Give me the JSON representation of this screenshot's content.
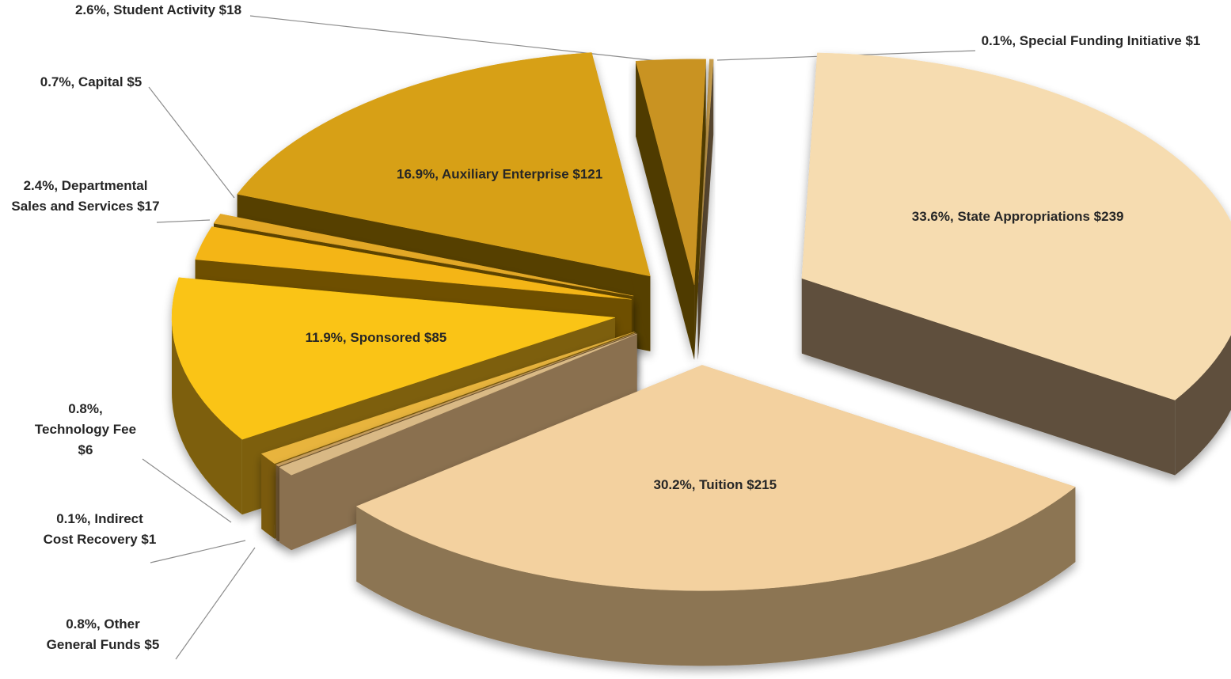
{
  "chart_data": {
    "type": "pie",
    "variant": "3d-exploded",
    "legend": "none",
    "slices": [
      {
        "name": "State Appropriations",
        "percent": "33.6%",
        "value": 239,
        "text": "33.6%, State Appropriations $239",
        "color": "#f6dcb0",
        "side": "#5e4f3c"
      },
      {
        "name": "Tuition",
        "percent": "30.2%",
        "value": 215,
        "text": "30.2%, Tuition $215",
        "color": "#f3d19f",
        "side": "#8c7452"
      },
      {
        "name": "Other General Funds",
        "percent": "0.8%",
        "value": 5,
        "text": "0.8%, Other General Funds $5",
        "color": "#d9b985",
        "side": "#8a7050"
      },
      {
        "name": "Indirect Cost Recovery",
        "percent": "0.1%",
        "value": 1,
        "text": "0.1%, Indirect Cost Recovery $1",
        "color": "#c9a060",
        "side": "#6f5632"
      },
      {
        "name": "Technology Fee",
        "percent": "0.8%",
        "value": 6,
        "text": "0.8%, Technology Fee $6",
        "color": "#e8b43c",
        "side": "#7a5a10"
      },
      {
        "name": "Sponsored",
        "percent": "11.9%",
        "value": 85,
        "text": "11.9%, Sponsored $85",
        "color": "#fac414",
        "side": "#7d5f08"
      },
      {
        "name": "Departmental Sales and Services",
        "percent": "2.4%",
        "value": 17,
        "text": "2.4%, Departmental Sales and Services $17",
        "color": "#f4b516",
        "side": "#6e5006"
      },
      {
        "name": "Capital",
        "percent": "0.7%",
        "value": 5,
        "text": "0.7%, Capital $5",
        "color": "#e3a826",
        "side": "#5e4404"
      },
      {
        "name": "Auxiliary Enterprise",
        "percent": "16.9%",
        "value": 121,
        "text": "16.9%, Auxiliary Enterprise $121",
        "color": "#d7a019",
        "side": "#573f02"
      },
      {
        "name": "Student Activity",
        "percent": "2.6%",
        "value": 18,
        "text": "2.6%, Student Activity $18",
        "color": "#c99320",
        "side": "#4f3a06"
      },
      {
        "name": "Special Funding Initiative",
        "percent": "0.1%",
        "value": 1,
        "text": "0.1%, Special Funding Initiative $1",
        "color": "#caa050",
        "side": "#5a4a30"
      }
    ]
  }
}
